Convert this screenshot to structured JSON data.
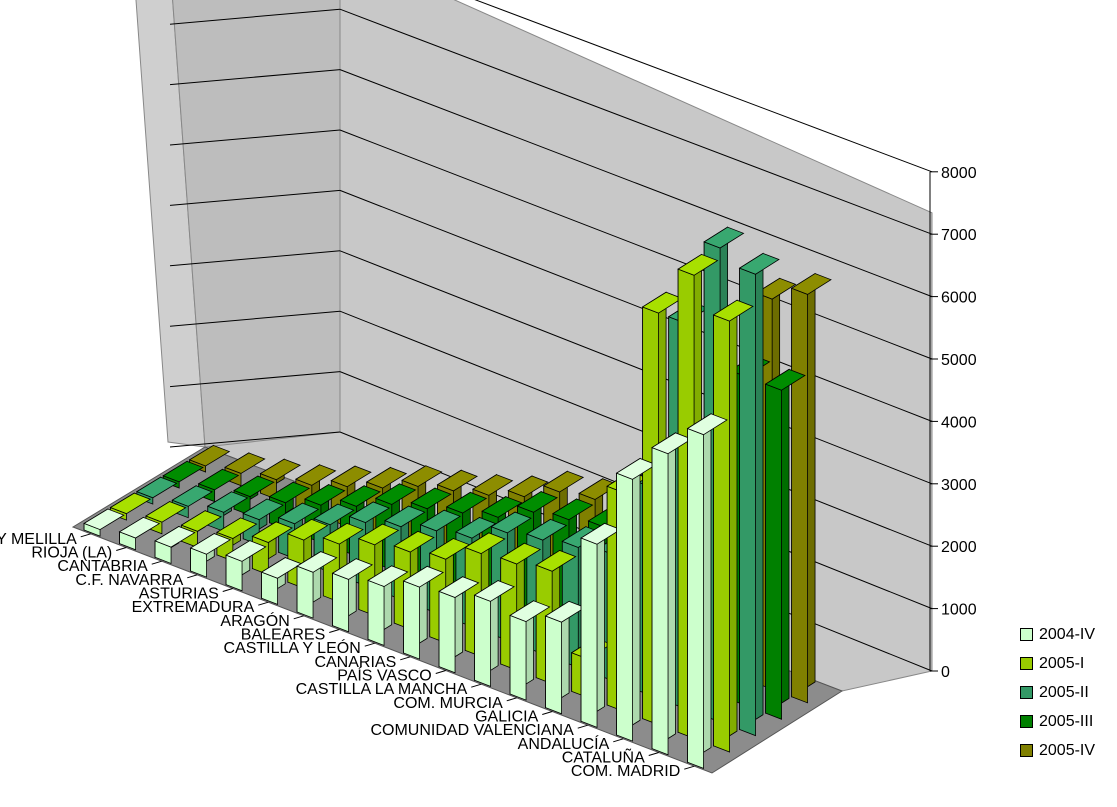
{
  "chart_data": {
    "type": "bar",
    "categories": [
      "CEUTA Y MELILLA",
      "RIOJA (LA)",
      "CANTABRIA",
      "C.F. NAVARRA",
      "ASTURIAS",
      "EXTREMADURA",
      "ARAGÓN",
      "BALEARES",
      "CASTILLA Y LEÓN",
      "CANARIAS",
      "PAÍS VASCO",
      "CASTILLA LA MANCHA",
      "COM. MURCIA",
      "GALICIA",
      "COMUNIDAD VALENCIANA",
      "ANDALUCÍA",
      "CATALUÑA",
      "COM. MADRID"
    ],
    "series": [
      {
        "name": "2004-IV",
        "color": "#ccffcc",
        "values": [
          100,
          180,
          250,
          350,
          450,
          400,
          700,
          800,
          900,
          1100,
          1150,
          1300,
          1200,
          1400,
          2800,
          4000,
          4600,
          5100
        ]
      },
      {
        "name": "2005-I",
        "color": "#99cc00",
        "values": [
          100,
          180,
          250,
          350,
          500,
          750,
          900,
          1100,
          1200,
          1300,
          1600,
          1650,
          1750,
          600,
          3400,
          6400,
          7200,
          6700
        ]
      },
      {
        "name": "2005-II",
        "color": "#339966",
        "values": [
          100,
          180,
          300,
          400,
          550,
          750,
          1000,
          1150,
          1300,
          1400,
          1700,
          1800,
          1900,
          2000,
          3300,
          6100,
          7500,
          7300
        ]
      },
      {
        "name": "2005-III",
        "color": "#008000",
        "values": [
          100,
          190,
          300,
          420,
          600,
          800,
          1050,
          1200,
          1350,
          1500,
          1800,
          1900,
          2000,
          2100,
          3400,
          4200,
          5300,
          5300
        ]
      },
      {
        "name": "2005-IV",
        "color": "#808000",
        "values": [
          100,
          200,
          320,
          450,
          650,
          850,
          1100,
          1250,
          1400,
          1600,
          1900,
          2000,
          2100,
          2200,
          3500,
          4400,
          6400,
          6700
        ]
      }
    ],
    "z_ticks": [
      "0",
      "1000",
      "2000",
      "3000",
      "4000",
      "5000",
      "6000",
      "7000",
      "8000"
    ],
    "zlim": [
      0,
      8000
    ],
    "grid": true,
    "legend_position": "bottom-right"
  },
  "legend": {
    "items": [
      {
        "label": "2004-IV",
        "color": "#ccffcc"
      },
      {
        "label": "2005-I",
        "color": "#99cc00"
      },
      {
        "label": "2005-II",
        "color": "#339966"
      },
      {
        "label": "2005-III",
        "color": "#008000"
      },
      {
        "label": "2005-IV",
        "color": "#808000"
      }
    ]
  }
}
